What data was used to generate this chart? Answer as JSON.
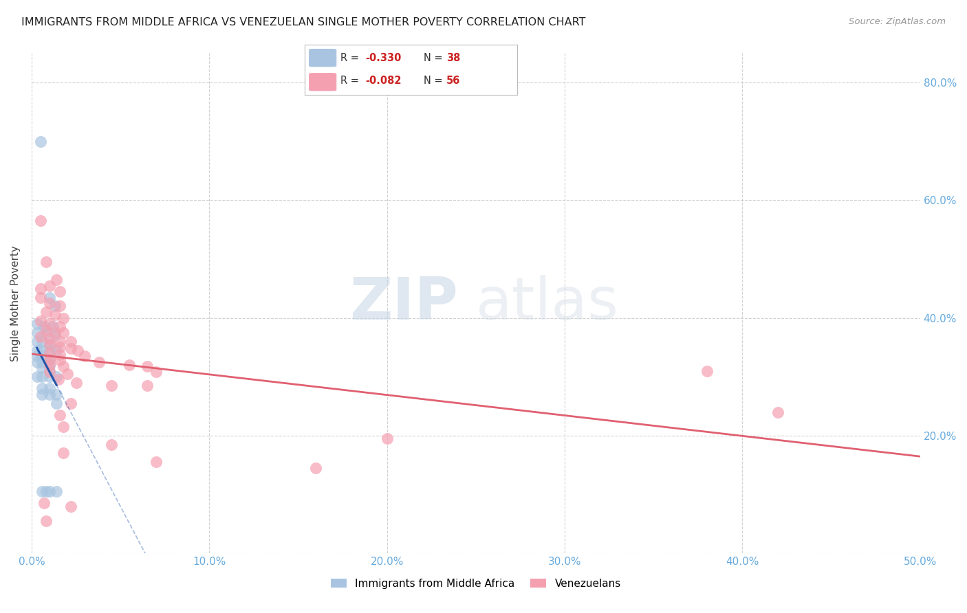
{
  "title": "IMMIGRANTS FROM MIDDLE AFRICA VS VENEZUELAN SINGLE MOTHER POVERTY CORRELATION CHART",
  "source": "Source: ZipAtlas.com",
  "ylabel": "Single Mother Poverty",
  "xlim": [
    0.0,
    0.5
  ],
  "ylim": [
    0.0,
    0.85
  ],
  "blue_R": -0.33,
  "blue_N": 38,
  "pink_R": -0.082,
  "pink_N": 56,
  "blue_color": "#a8c4e0",
  "pink_color": "#f4a0b0",
  "blue_line_color": "#2255aa",
  "pink_line_color": "#e06070",
  "blue_scatter": [
    [
      0.005,
      0.7
    ],
    [
      0.01,
      0.435
    ],
    [
      0.013,
      0.42
    ],
    [
      0.003,
      0.39
    ],
    [
      0.007,
      0.385
    ],
    [
      0.012,
      0.385
    ],
    [
      0.003,
      0.375
    ],
    [
      0.008,
      0.375
    ],
    [
      0.013,
      0.37
    ],
    [
      0.003,
      0.36
    ],
    [
      0.006,
      0.36
    ],
    [
      0.01,
      0.355
    ],
    [
      0.003,
      0.345
    ],
    [
      0.006,
      0.345
    ],
    [
      0.01,
      0.345
    ],
    [
      0.014,
      0.345
    ],
    [
      0.003,
      0.335
    ],
    [
      0.006,
      0.335
    ],
    [
      0.01,
      0.33
    ],
    [
      0.003,
      0.325
    ],
    [
      0.006,
      0.325
    ],
    [
      0.01,
      0.32
    ],
    [
      0.006,
      0.315
    ],
    [
      0.01,
      0.31
    ],
    [
      0.003,
      0.3
    ],
    [
      0.006,
      0.3
    ],
    [
      0.01,
      0.3
    ],
    [
      0.014,
      0.3
    ],
    [
      0.006,
      0.28
    ],
    [
      0.01,
      0.28
    ],
    [
      0.006,
      0.27
    ],
    [
      0.01,
      0.27
    ],
    [
      0.014,
      0.27
    ],
    [
      0.014,
      0.255
    ],
    [
      0.006,
      0.105
    ],
    [
      0.01,
      0.105
    ],
    [
      0.014,
      0.105
    ],
    [
      0.008,
      0.105
    ]
  ],
  "pink_scatter": [
    [
      0.005,
      0.565
    ],
    [
      0.008,
      0.495
    ],
    [
      0.014,
      0.465
    ],
    [
      0.01,
      0.455
    ],
    [
      0.005,
      0.45
    ],
    [
      0.016,
      0.445
    ],
    [
      0.005,
      0.435
    ],
    [
      0.01,
      0.425
    ],
    [
      0.016,
      0.42
    ],
    [
      0.008,
      0.41
    ],
    [
      0.013,
      0.405
    ],
    [
      0.018,
      0.4
    ],
    [
      0.005,
      0.395
    ],
    [
      0.01,
      0.39
    ],
    [
      0.016,
      0.385
    ],
    [
      0.008,
      0.38
    ],
    [
      0.013,
      0.375
    ],
    [
      0.018,
      0.375
    ],
    [
      0.005,
      0.368
    ],
    [
      0.01,
      0.365
    ],
    [
      0.016,
      0.36
    ],
    [
      0.022,
      0.36
    ],
    [
      0.01,
      0.355
    ],
    [
      0.016,
      0.35
    ],
    [
      0.022,
      0.348
    ],
    [
      0.026,
      0.345
    ],
    [
      0.01,
      0.34
    ],
    [
      0.016,
      0.338
    ],
    [
      0.03,
      0.335
    ],
    [
      0.01,
      0.33
    ],
    [
      0.016,
      0.328
    ],
    [
      0.038,
      0.325
    ],
    [
      0.01,
      0.32
    ],
    [
      0.018,
      0.318
    ],
    [
      0.055,
      0.32
    ],
    [
      0.065,
      0.318
    ],
    [
      0.01,
      0.308
    ],
    [
      0.02,
      0.305
    ],
    [
      0.07,
      0.308
    ],
    [
      0.015,
      0.295
    ],
    [
      0.025,
      0.29
    ],
    [
      0.045,
      0.285
    ],
    [
      0.065,
      0.285
    ],
    [
      0.022,
      0.255
    ],
    [
      0.016,
      0.235
    ],
    [
      0.018,
      0.215
    ],
    [
      0.38,
      0.31
    ],
    [
      0.42,
      0.24
    ],
    [
      0.2,
      0.195
    ],
    [
      0.018,
      0.17
    ],
    [
      0.07,
      0.155
    ],
    [
      0.007,
      0.085
    ],
    [
      0.022,
      0.08
    ],
    [
      0.16,
      0.145
    ],
    [
      0.008,
      0.055
    ],
    [
      0.045,
      0.185
    ]
  ],
  "watermark_zip": "ZIP",
  "watermark_atlas": "atlas",
  "legend_blue_label": "Immigrants from Middle Africa",
  "legend_pink_label": "Venezuelans",
  "background_color": "#ffffff",
  "grid_color": "#cccccc",
  "axis_color": "#66aadd"
}
